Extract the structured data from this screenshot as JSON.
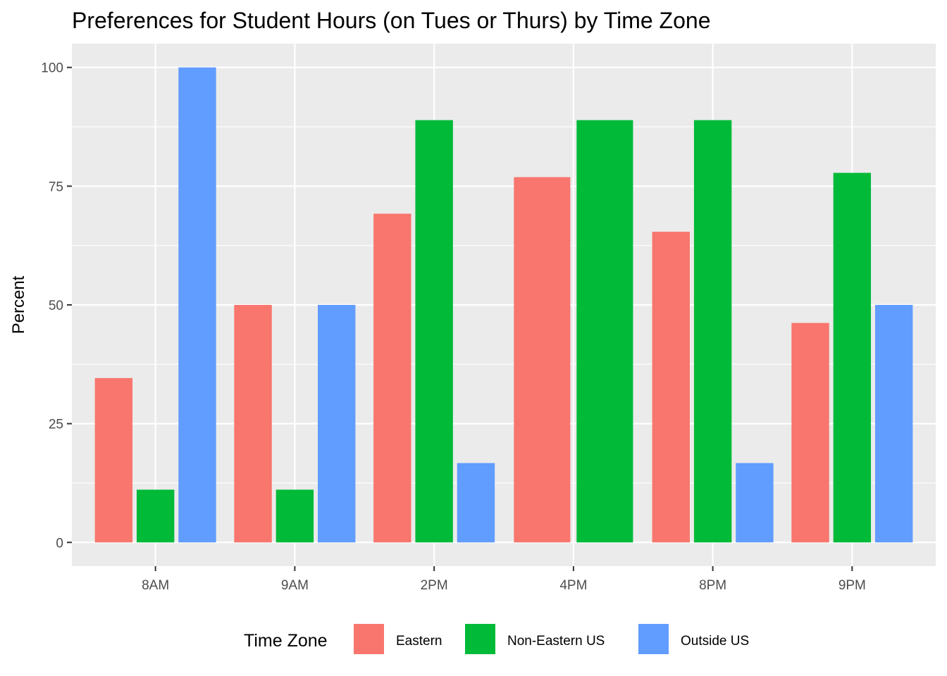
{
  "chart_data": {
    "type": "bar",
    "title": "Preferences for Student Hours (on Tues or Thurs) by Time Zone",
    "xlabel": "",
    "ylabel": "Percent",
    "ylim": [
      -5,
      105
    ],
    "y_ticks": [
      0,
      25,
      50,
      75,
      100
    ],
    "grid": true,
    "legend_position": "bottom",
    "legend_title": "Time Zone",
    "categories": [
      "8AM",
      "9AM",
      "2PM",
      "4PM",
      "8PM",
      "9PM"
    ],
    "series": [
      {
        "name": "Eastern",
        "color": "#F8766D",
        "values": [
          34.6,
          50.0,
          69.2,
          76.9,
          65.4,
          46.2
        ]
      },
      {
        "name": "Non-Eastern US",
        "color": "#00BA38",
        "values": [
          11.1,
          11.1,
          88.9,
          88.9,
          88.9,
          77.8
        ]
      },
      {
        "name": "Outside US",
        "color": "#619CFF",
        "values": [
          100.0,
          50.0,
          16.7,
          null,
          16.7,
          50.0
        ]
      }
    ]
  }
}
